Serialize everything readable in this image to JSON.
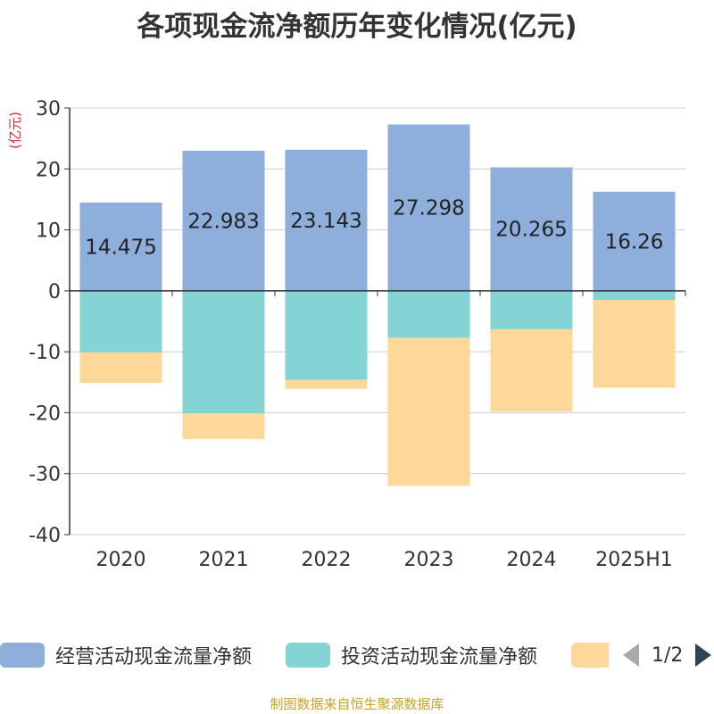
{
  "chart_data": {
    "type": "bar",
    "title": "各项现金流净额历年变化情况(亿元)",
    "ylabel": "(亿元)",
    "xlabel": "",
    "ylim": [
      -40,
      30
    ],
    "yticks": [
      30,
      20,
      10,
      0,
      -10,
      -20,
      -30,
      -40
    ],
    "categories": [
      "2020",
      "2021",
      "2022",
      "2023",
      "2024",
      "2025H1"
    ],
    "grid": true,
    "stacked": true,
    "series": [
      {
        "name": "经营活动现金流量净额",
        "color": "#8eaedb",
        "values": [
          14.475,
          22.983,
          23.143,
          27.298,
          20.265,
          16.26
        ],
        "labels": [
          "14.475",
          "22.983",
          "23.143",
          "27.298",
          "20.265",
          "16.26"
        ]
      },
      {
        "name": "投资活动现金流量净额",
        "color": "#84d4d4",
        "values": [
          -10.1,
          -20.1,
          -14.6,
          -7.7,
          -6.3,
          -1.5
        ]
      },
      {
        "name": "",
        "color": "#fdd899",
        "values": [
          -5.0,
          -4.2,
          -1.5,
          -24.3,
          -13.5,
          -14.4
        ]
      }
    ],
    "legend_position": "bottom",
    "legend_page": "1/2"
  },
  "source": "制图数据来自恒生聚源数据库"
}
